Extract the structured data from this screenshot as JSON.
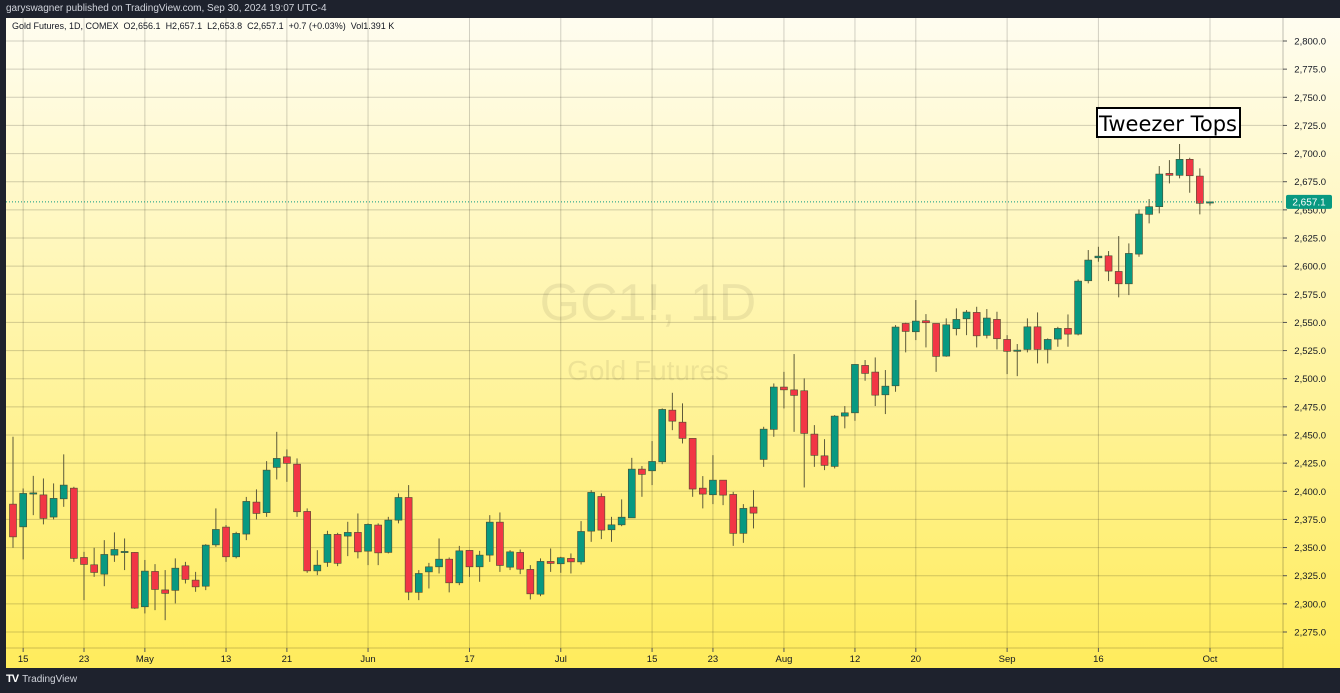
{
  "header": {
    "published": "garyswagner published on TradingView.com, Sep 30, 2024 19:07 UTC-4"
  },
  "legend": {
    "text": "Gold Futures, 1D, COMEX  O2,656.1  H2,657.1  L2,653.8  C2,657.1  +0.7 (+0.03%)  Vol1.391 K"
  },
  "watermark": {
    "symbol": "GC1!, 1D",
    "name": "Gold Futures"
  },
  "annotation": {
    "text": "Tweezer Tops"
  },
  "footer": {
    "logo_mark": "TV",
    "logo_text": "TradingView"
  },
  "chart_data": {
    "type": "candlestick",
    "symbol": "Gold Futures, 1D, COMEX",
    "colors": {
      "up": "#089981",
      "down": "#f23645",
      "background_top": "#fffdf0",
      "background_bottom": "#ffec5c"
    },
    "grid": true,
    "ylim": [
      2262,
      2822
    ],
    "yticks": [
      2275,
      2300,
      2325,
      2350,
      2375,
      2400,
      2425,
      2450,
      2475,
      2500,
      2525,
      2550,
      2575,
      2600,
      2625,
      2650,
      2675,
      2700,
      2725,
      2750,
      2775,
      2800
    ],
    "ytick_labels": [
      "2,275.0",
      "2,300.0",
      "2,325.0",
      "2,350.0",
      "2,375.0",
      "2,400.0",
      "2,425.0",
      "2,450.0",
      "2,475.0",
      "2,500.0",
      "2,525.0",
      "2,550.0",
      "2,575.0",
      "2,600.0",
      "2,625.0",
      "2,650.0",
      "2,675.0",
      "2,700.0",
      "2,725.0",
      "2,750.0",
      "2,775.0",
      "2,800.0"
    ],
    "xticks": [
      {
        "label": "15",
        "candle": 1
      },
      {
        "label": "23",
        "candle": 7
      },
      {
        "label": "May",
        "candle": 13
      },
      {
        "label": "13",
        "candle": 21
      },
      {
        "label": "21",
        "candle": 27
      },
      {
        "label": "Jun",
        "candle": 35
      },
      {
        "label": "17",
        "candle": 45
      },
      {
        "label": "Jul",
        "candle": 54
      },
      {
        "label": "15",
        "candle": 63
      },
      {
        "label": "23",
        "candle": 69
      },
      {
        "label": "Aug",
        "candle": 76
      },
      {
        "label": "12",
        "candle": 83
      },
      {
        "label": "20",
        "candle": 89
      },
      {
        "label": "Sep",
        "candle": 98
      },
      {
        "label": "16",
        "candle": 107
      },
      {
        "label": "Oct",
        "candle": 118
      }
    ],
    "last_price": {
      "value": 2657.1,
      "label": "2,657.1"
    },
    "ohlc": [
      [
        2388.6,
        2448.4,
        2349.8,
        2359.5
      ],
      [
        2368.4,
        2402.5,
        2339.5,
        2398.1
      ],
      [
        2398.6,
        2413.7,
        2378.8,
        2398.6
      ],
      [
        2396.8,
        2411.4,
        2370.6,
        2375.9
      ],
      [
        2377.1,
        2407.0,
        2375.0,
        2393.7
      ],
      [
        2393.3,
        2432.8,
        2386.2,
        2405.5
      ],
      [
        2402.8,
        2404.0,
        2337.3,
        2340.4
      ],
      [
        2341.2,
        2346.2,
        2303.3,
        2335.0
      ],
      [
        2334.7,
        2349.8,
        2324.0,
        2327.9
      ],
      [
        2326.4,
        2356.6,
        2315.7,
        2343.9
      ],
      [
        2343.3,
        2363.5,
        2337.3,
        2348.3
      ],
      [
        2346.6,
        2358.1,
        2330.0,
        2346.6
      ],
      [
        2345.7,
        2346.0,
        2295.6,
        2296.2
      ],
      [
        2297.4,
        2339.0,
        2291.5,
        2329.1
      ],
      [
        2328.8,
        2335.3,
        2294.4,
        2312.8
      ],
      [
        2312.4,
        2330.0,
        2285.5,
        2309.3
      ],
      [
        2312.0,
        2340.4,
        2300.4,
        2331.7
      ],
      [
        2333.8,
        2337.3,
        2318.1,
        2321.7
      ],
      [
        2321.1,
        2328.4,
        2310.7,
        2315.1
      ],
      [
        2315.7,
        2353.0,
        2312.2,
        2352.2
      ],
      [
        2352.4,
        2384.8,
        2350.7,
        2366.1
      ],
      [
        2368.2,
        2370.0,
        2337.3,
        2341.8
      ],
      [
        2341.8,
        2364.0,
        2340.4,
        2362.6
      ],
      [
        2362.0,
        2395.0,
        2356.6,
        2391.0
      ],
      [
        2390.4,
        2401.7,
        2375.0,
        2380.3
      ],
      [
        2381.0,
        2426.8,
        2377.3,
        2418.8
      ],
      [
        2421.2,
        2452.8,
        2410.5,
        2429.2
      ],
      [
        2430.6,
        2437.2,
        2408.4,
        2424.8
      ],
      [
        2424.1,
        2429.2,
        2377.3,
        2381.8
      ],
      [
        2382.1,
        2384.8,
        2327.6,
        2329.3
      ],
      [
        2329.3,
        2347.7,
        2325.5,
        2334.4
      ],
      [
        2336.8,
        2364.9,
        2332.9,
        2361.7
      ],
      [
        2361.7,
        2363.1,
        2333.5,
        2336.0
      ],
      [
        2360.2,
        2372.9,
        2342.4,
        2363.5
      ],
      [
        2363.5,
        2380.3,
        2340.4,
        2346.2
      ],
      [
        2346.8,
        2371.5,
        2334.4,
        2370.6
      ],
      [
        2370.0,
        2371.5,
        2334.4,
        2345.3
      ],
      [
        2345.7,
        2377.3,
        2344.8,
        2374.4
      ],
      [
        2374.4,
        2398.1,
        2371.5,
        2394.5
      ],
      [
        2394.5,
        2405.5,
        2303.3,
        2310.4
      ],
      [
        2310.2,
        2330.0,
        2303.3,
        2327.0
      ],
      [
        2328.4,
        2336.4,
        2313.7,
        2332.9
      ],
      [
        2332.9,
        2358.1,
        2327.0,
        2339.7
      ],
      [
        2339.7,
        2341.2,
        2310.2,
        2318.7
      ],
      [
        2318.7,
        2351.5,
        2316.6,
        2347.1
      ],
      [
        2347.5,
        2347.9,
        2324.0,
        2332.9
      ],
      [
        2332.9,
        2347.1,
        2319.6,
        2343.3
      ],
      [
        2343.3,
        2378.8,
        2337.3,
        2372.6
      ],
      [
        2372.6,
        2381.2,
        2328.4,
        2334.1
      ],
      [
        2332.6,
        2347.7,
        2330.0,
        2346.2
      ],
      [
        2345.7,
        2348.3,
        2326.4,
        2330.8
      ],
      [
        2330.6,
        2334.4,
        2303.9,
        2308.9
      ],
      [
        2308.6,
        2340.4,
        2306.8,
        2337.7
      ],
      [
        2337.7,
        2349.2,
        2328.4,
        2335.9
      ],
      [
        2335.6,
        2341.8,
        2327.6,
        2341.0
      ],
      [
        2340.4,
        2344.8,
        2327.0,
        2337.3
      ],
      [
        2337.3,
        2373.5,
        2335.0,
        2364.3
      ],
      [
        2364.6,
        2401.0,
        2355.1,
        2399.0
      ],
      [
        2395.4,
        2398.1,
        2357.5,
        2365.5
      ],
      [
        2365.8,
        2377.3,
        2355.1,
        2370.2
      ],
      [
        2370.2,
        2392.8,
        2369.0,
        2377.0
      ],
      [
        2376.4,
        2429.7,
        2376.4,
        2419.7
      ],
      [
        2419.7,
        2422.4,
        2395.1,
        2415.0
      ],
      [
        2418.2,
        2444.6,
        2405.5,
        2426.5
      ],
      [
        2426.2,
        2473.6,
        2424.1,
        2472.7
      ],
      [
        2472.1,
        2487.5,
        2454.3,
        2462.3
      ],
      [
        2461.4,
        2478.1,
        2442.5,
        2447.0
      ],
      [
        2447.0,
        2447.0,
        2395.1,
        2402.0
      ],
      [
        2402.8,
        2413.5,
        2384.8,
        2397.5
      ],
      [
        2396.9,
        2432.1,
        2388.6,
        2409.9
      ],
      [
        2409.9,
        2409.9,
        2387.7,
        2396.6
      ],
      [
        2397.2,
        2399.5,
        2351.5,
        2362.6
      ],
      [
        2362.6,
        2388.6,
        2354.2,
        2384.8
      ],
      [
        2386.0,
        2401.0,
        2367.0,
        2380.6
      ],
      [
        2428.3,
        2457.3,
        2421.7,
        2455.2
      ],
      [
        2455.0,
        2495.8,
        2448.4,
        2492.6
      ],
      [
        2492.6,
        2506.1,
        2473.6,
        2490.1
      ],
      [
        2490.1,
        2521.9,
        2452.8,
        2485.2
      ],
      [
        2489.3,
        2500.3,
        2403.4,
        2451.4
      ],
      [
        2450.8,
        2458.8,
        2421.7,
        2431.9
      ],
      [
        2431.5,
        2446.3,
        2418.8,
        2423.0
      ],
      [
        2422.1,
        2467.7,
        2420.3,
        2466.8
      ],
      [
        2466.8,
        2475.7,
        2455.9,
        2469.7
      ],
      [
        2469.7,
        2513.0,
        2462.6,
        2512.7
      ],
      [
        2511.8,
        2516.6,
        2498.2,
        2504.7
      ],
      [
        2505.9,
        2518.9,
        2475.7,
        2485.4
      ],
      [
        2485.7,
        2507.7,
        2468.6,
        2493.4
      ],
      [
        2493.7,
        2547.6,
        2488.4,
        2545.9
      ],
      [
        2549.1,
        2549.7,
        2523.4,
        2542.0
      ],
      [
        2541.7,
        2569.9,
        2534.3,
        2551.2
      ],
      [
        2551.5,
        2557.4,
        2527.8,
        2549.7
      ],
      [
        2549.1,
        2549.1,
        2506.1,
        2519.8
      ],
      [
        2520.1,
        2553.6,
        2519.5,
        2547.9
      ],
      [
        2544.4,
        2562.5,
        2538.5,
        2552.7
      ],
      [
        2553.2,
        2561.0,
        2538.7,
        2559.2
      ],
      [
        2558.9,
        2563.9,
        2527.8,
        2538.1
      ],
      [
        2538.5,
        2561.9,
        2535.8,
        2553.9
      ],
      [
        2552.7,
        2559.5,
        2526.0,
        2535.5
      ],
      [
        2534.9,
        2538.7,
        2504.1,
        2524.3
      ],
      [
        2524.3,
        2530.8,
        2502.3,
        2525.4
      ],
      [
        2526.0,
        2553.6,
        2523.4,
        2546.1
      ],
      [
        2546.1,
        2558.9,
        2513.6,
        2526.0
      ],
      [
        2526.0,
        2535.8,
        2513.6,
        2534.9
      ],
      [
        2535.2,
        2546.1,
        2528.4,
        2544.7
      ],
      [
        2544.7,
        2557.1,
        2528.4,
        2539.6
      ],
      [
        2539.6,
        2588.2,
        2538.5,
        2586.7
      ],
      [
        2587.0,
        2614.3,
        2584.7,
        2605.4
      ],
      [
        2607.4,
        2617.2,
        2603.9,
        2608.9
      ],
      [
        2609.2,
        2613.4,
        2586.7,
        2595.6
      ],
      [
        2595.3,
        2626.7,
        2572.3,
        2584.3
      ],
      [
        2584.3,
        2620.2,
        2574.3,
        2611.3
      ],
      [
        2610.7,
        2650.4,
        2608.3,
        2646.3
      ],
      [
        2646.0,
        2659.6,
        2638.0,
        2652.8
      ],
      [
        2652.8,
        2688.9,
        2646.9,
        2681.8
      ],
      [
        2682.4,
        2694.2,
        2673.5,
        2680.7
      ],
      [
        2680.7,
        2708.5,
        2678.0,
        2694.9
      ],
      [
        2694.9,
        2696.3,
        2665.2,
        2680.3
      ],
      [
        2680.0,
        2686.9,
        2646.0,
        2655.8
      ],
      [
        2656.1,
        2657.1,
        2653.8,
        2657.1
      ]
    ]
  }
}
